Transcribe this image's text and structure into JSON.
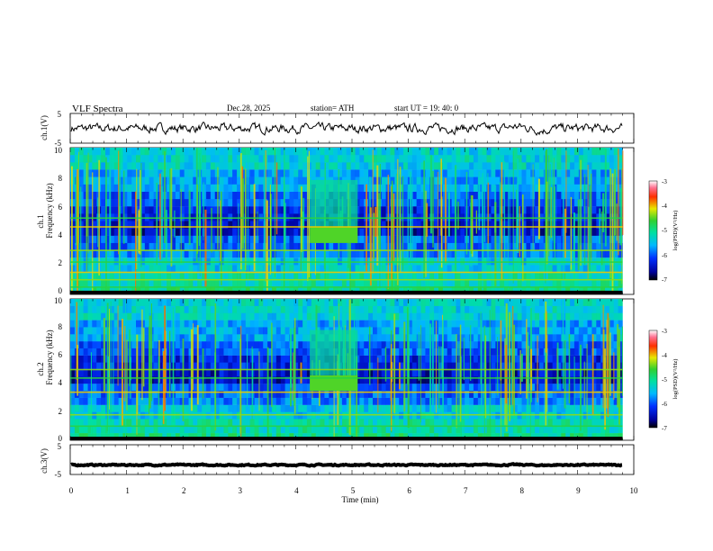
{
  "header": {
    "title": "VLF  Spectra",
    "date": "Dec.28, 2025",
    "station": "station= ATH",
    "start": "start  UT  =    19: 40: 0"
  },
  "chart_data": {
    "type": "heatmap",
    "title": "VLF  Spectra",
    "xlabel": "Time  (min)",
    "xlim": [
      0,
      10
    ],
    "xticks": [
      "0",
      "1",
      "2",
      "3",
      "4",
      "5",
      "6",
      "7",
      "8",
      "9",
      "10"
    ],
    "record_end_min": 9.8,
    "panels": [
      {
        "name": "ch1-waveform",
        "ylabel": "ch.1(V)",
        "ylim": [
          -5,
          5
        ],
        "yticks": [
          "5",
          "-5"
        ],
        "trace_level": 0,
        "trace_noise": 1.0
      },
      {
        "name": "ch1-spectrogram",
        "ylabel_top": "ch.1",
        "ylabel": "Frequency  (kHz)",
        "ylim": [
          0,
          10
        ],
        "yticks": [
          "0",
          "2",
          "4",
          "6",
          "8",
          "10"
        ],
        "colorbar_label": "log(PSD)(V²/Hz)",
        "colorbar_range": [
          -7,
          -3
        ],
        "colorbar_ticks": [
          "-3",
          "-4",
          "-5",
          "-6",
          "-7"
        ],
        "event": {
          "t_start": 4.25,
          "t_end": 5.1,
          "f_low": 3.5,
          "f_high": 4.6
        },
        "lines_khz": [
          0.5,
          1.0,
          1.5,
          2.2,
          3.0,
          4.6,
          5.2
        ]
      },
      {
        "name": "ch2-spectrogram",
        "ylabel_top": "ch.2",
        "ylabel": "Frequency  (kHz)",
        "ylim": [
          0,
          10
        ],
        "yticks": [
          "0",
          "2",
          "4",
          "6",
          "8",
          "10"
        ],
        "colorbar_label": "log(PSD)(V²/Hz)",
        "colorbar_range": [
          -7,
          -3
        ],
        "colorbar_ticks": [
          "-3",
          "-4",
          "-5",
          "-6",
          "-7"
        ],
        "event": {
          "t_start": 4.25,
          "t_end": 5.1,
          "f_low": 3.5,
          "f_high": 4.6
        },
        "lines_khz": [
          1.0,
          1.8,
          3.4,
          4.4,
          5.0
        ]
      },
      {
        "name": "ch3-waveform",
        "ylabel": "ch.3(V)",
        "ylim": [
          -5,
          5
        ],
        "yticks": [
          "5",
          "-5"
        ],
        "trace_level": -1.8,
        "trace_noise": 0.15
      }
    ]
  }
}
